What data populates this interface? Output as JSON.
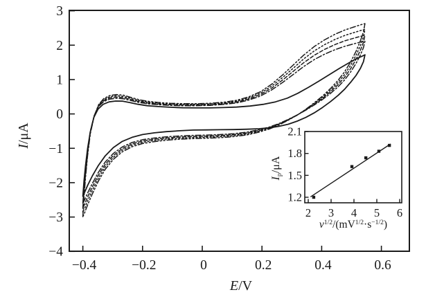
{
  "figure": {
    "background": "#ffffff",
    "line_color": "#1a1a1a",
    "text_color": "#1a1a1a"
  },
  "labels": {
    "main_y": {
      "sym": "I",
      "rest": "/μA"
    },
    "main_x": {
      "sym": "E",
      "rest": "/V"
    },
    "inset_y": {
      "sym": "I",
      "sub": "p",
      "rest": "/μA"
    },
    "inset_x": {
      "sym": "v",
      "sup1": "1/2",
      "mid1": "/(mV",
      "sup2": "1/2",
      "mid2": "·s",
      "sup3": "−1/2",
      "end": ")"
    }
  },
  "chart_data": [
    {
      "type": "line",
      "id": "main-cv",
      "description": "Cyclic voltammograms at five scan rates; one solid (slowest) and four broken-line curves",
      "xlabel": "E/V",
      "ylabel": "I/μA",
      "xlim": [
        -0.4455,
        0.6937
      ],
      "ylim": [
        -4.0,
        3.0
      ],
      "grid": false,
      "x_ticks": [
        -0.4,
        -0.2,
        0,
        0.2,
        0.4,
        0.6
      ],
      "x_tick_labels": [
        "−0.4",
        "−0.2",
        "0",
        "0.2",
        "0.4",
        "0.6"
      ],
      "y_ticks": [
        3,
        2,
        1,
        0,
        -1,
        -2,
        -3,
        -4
      ],
      "y_tick_labels": [
        "3",
        "2",
        "1",
        "0",
        "−1",
        "−2",
        "−3",
        "−4"
      ],
      "series": [
        {
          "name": "cv-solid",
          "base": "solid",
          "dash": "",
          "gain_pos": 1.0,
          "gain_neg": 1.0
        },
        {
          "name": "cv-dash-dot",
          "base": "dashed",
          "dash": "8 3 2 3",
          "gain_pos": 1.0,
          "gain_neg": 1.0
        },
        {
          "name": "cv-dash",
          "base": "dashed",
          "dash": "5 3",
          "gain_pos": 1.08,
          "gain_neg": 1.05
        },
        {
          "name": "cv-dot",
          "base": "dashed",
          "dash": "2 3",
          "gain_pos": 1.16,
          "gain_neg": 1.1
        },
        {
          "name": "cv-dash-dot-dot",
          "base": "dashed",
          "dash": "8 3 2 3 2 3",
          "gain_pos": 1.24,
          "gain_neg": 1.15
        }
      ],
      "base_loops": {
        "solid": [
          [
            -0.4,
            -2.4
          ],
          [
            -0.396,
            -1.95
          ],
          [
            -0.391,
            -1.5
          ],
          [
            -0.384,
            -1.0
          ],
          [
            -0.375,
            -0.52
          ],
          [
            -0.363,
            -0.1
          ],
          [
            -0.349,
            0.14
          ],
          [
            -0.332,
            0.28
          ],
          [
            -0.312,
            0.35
          ],
          [
            -0.29,
            0.375
          ],
          [
            -0.266,
            0.37
          ],
          [
            -0.242,
            0.33
          ],
          [
            -0.215,
            0.28
          ],
          [
            -0.185,
            0.24
          ],
          [
            -0.15,
            0.215
          ],
          [
            -0.11,
            0.195
          ],
          [
            -0.065,
            0.18
          ],
          [
            -0.02,
            0.175
          ],
          [
            0.025,
            0.175
          ],
          [
            0.07,
            0.185
          ],
          [
            0.115,
            0.2
          ],
          [
            0.16,
            0.23
          ],
          [
            0.205,
            0.28
          ],
          [
            0.245,
            0.35
          ],
          [
            0.285,
            0.46
          ],
          [
            0.32,
            0.6
          ],
          [
            0.355,
            0.77
          ],
          [
            0.39,
            0.95
          ],
          [
            0.425,
            1.14
          ],
          [
            0.46,
            1.33
          ],
          [
            0.49,
            1.48
          ],
          [
            0.515,
            1.6
          ],
          [
            0.533,
            1.67
          ],
          [
            0.545,
            1.72
          ],
          [
            0.54,
            1.52
          ],
          [
            0.53,
            1.33
          ],
          [
            0.515,
            1.12
          ],
          [
            0.497,
            0.92
          ],
          [
            0.477,
            0.72
          ],
          [
            0.455,
            0.54
          ],
          [
            0.43,
            0.36
          ],
          [
            0.403,
            0.19
          ],
          [
            0.375,
            0.03
          ],
          [
            0.347,
            -0.1
          ],
          [
            0.318,
            -0.21
          ],
          [
            0.288,
            -0.3
          ],
          [
            0.257,
            -0.36
          ],
          [
            0.225,
            -0.405
          ],
          [
            0.19,
            -0.43
          ],
          [
            0.15,
            -0.445
          ],
          [
            0.105,
            -0.455
          ],
          [
            0.06,
            -0.46
          ],
          [
            0.015,
            -0.465
          ],
          [
            -0.03,
            -0.47
          ],
          [
            -0.075,
            -0.49
          ],
          [
            -0.12,
            -0.515
          ],
          [
            -0.16,
            -0.55
          ],
          [
            -0.2,
            -0.6
          ],
          [
            -0.235,
            -0.68
          ],
          [
            -0.268,
            -0.8
          ],
          [
            -0.298,
            -0.98
          ],
          [
            -0.325,
            -1.22
          ],
          [
            -0.348,
            -1.5
          ],
          [
            -0.368,
            -1.8
          ],
          [
            -0.384,
            -2.08
          ],
          [
            -0.394,
            -2.28
          ],
          [
            -0.4,
            -2.4
          ]
        ],
        "dashed": [
          [
            -0.4,
            -2.6
          ],
          [
            -0.396,
            -2.1
          ],
          [
            -0.391,
            -1.6
          ],
          [
            -0.384,
            -1.05
          ],
          [
            -0.375,
            -0.5
          ],
          [
            -0.362,
            -0.05
          ],
          [
            -0.347,
            0.22
          ],
          [
            -0.33,
            0.36
          ],
          [
            -0.31,
            0.43
          ],
          [
            -0.288,
            0.455
          ],
          [
            -0.264,
            0.44
          ],
          [
            -0.24,
            0.39
          ],
          [
            -0.212,
            0.335
          ],
          [
            -0.182,
            0.295
          ],
          [
            -0.148,
            0.27
          ],
          [
            -0.108,
            0.25
          ],
          [
            -0.064,
            0.24
          ],
          [
            -0.018,
            0.24
          ],
          [
            0.028,
            0.25
          ],
          [
            0.072,
            0.275
          ],
          [
            0.115,
            0.32
          ],
          [
            0.155,
            0.4
          ],
          [
            0.195,
            0.52
          ],
          [
            0.233,
            0.7
          ],
          [
            0.27,
            0.92
          ],
          [
            0.305,
            1.15
          ],
          [
            0.34,
            1.38
          ],
          [
            0.375,
            1.58
          ],
          [
            0.41,
            1.74
          ],
          [
            0.445,
            1.87
          ],
          [
            0.478,
            1.97
          ],
          [
            0.508,
            2.04
          ],
          [
            0.53,
            2.09
          ],
          [
            0.545,
            2.12
          ],
          [
            0.54,
            1.93
          ],
          [
            0.53,
            1.72
          ],
          [
            0.515,
            1.47
          ],
          [
            0.497,
            1.22
          ],
          [
            0.477,
            0.99
          ],
          [
            0.455,
            0.79
          ],
          [
            0.43,
            0.6
          ],
          [
            0.403,
            0.42
          ],
          [
            0.375,
            0.26
          ],
          [
            0.347,
            0.11
          ],
          [
            0.318,
            -0.03
          ],
          [
            0.288,
            -0.16
          ],
          [
            0.257,
            -0.28
          ],
          [
            0.225,
            -0.38
          ],
          [
            0.19,
            -0.46
          ],
          [
            0.15,
            -0.53
          ],
          [
            0.105,
            -0.575
          ],
          [
            0.06,
            -0.6
          ],
          [
            0.015,
            -0.615
          ],
          [
            -0.03,
            -0.625
          ],
          [
            -0.075,
            -0.64
          ],
          [
            -0.12,
            -0.665
          ],
          [
            -0.16,
            -0.7
          ],
          [
            -0.2,
            -0.75
          ],
          [
            -0.235,
            -0.83
          ],
          [
            -0.268,
            -0.96
          ],
          [
            -0.298,
            -1.15
          ],
          [
            -0.325,
            -1.4
          ],
          [
            -0.348,
            -1.7
          ],
          [
            -0.368,
            -2.02
          ],
          [
            -0.384,
            -2.3
          ],
          [
            -0.394,
            -2.5
          ],
          [
            -0.4,
            -2.6
          ]
        ]
      }
    },
    {
      "type": "scatter",
      "id": "inset-peak-current",
      "description": "Inset: anodic peak current vs square root of scan rate with linear fit",
      "xlabel": "v1/2/(mV1/2·s−1/2)",
      "ylabel": "Ip/μA",
      "xlim": [
        1.85,
        6.1
      ],
      "ylim": [
        1.12,
        2.1
      ],
      "grid": false,
      "x_ticks": [
        2,
        3,
        4,
        5,
        6
      ],
      "x_tick_labels": [
        "2",
        "3",
        "4",
        "5",
        "6"
      ],
      "y_ticks": [
        2.1,
        1.8,
        1.5,
        1.2
      ],
      "y_tick_labels": [
        "2.1",
        "1.8",
        "1.5",
        "1.2"
      ],
      "points": [
        [
          2.24,
          1.2
        ],
        [
          3.91,
          1.62
        ],
        [
          4.52,
          1.74
        ],
        [
          5.09,
          1.83
        ],
        [
          5.55,
          1.91
        ]
      ],
      "fit_line": [
        [
          2.1,
          1.205
        ],
        [
          5.6,
          1.93
        ]
      ]
    }
  ]
}
